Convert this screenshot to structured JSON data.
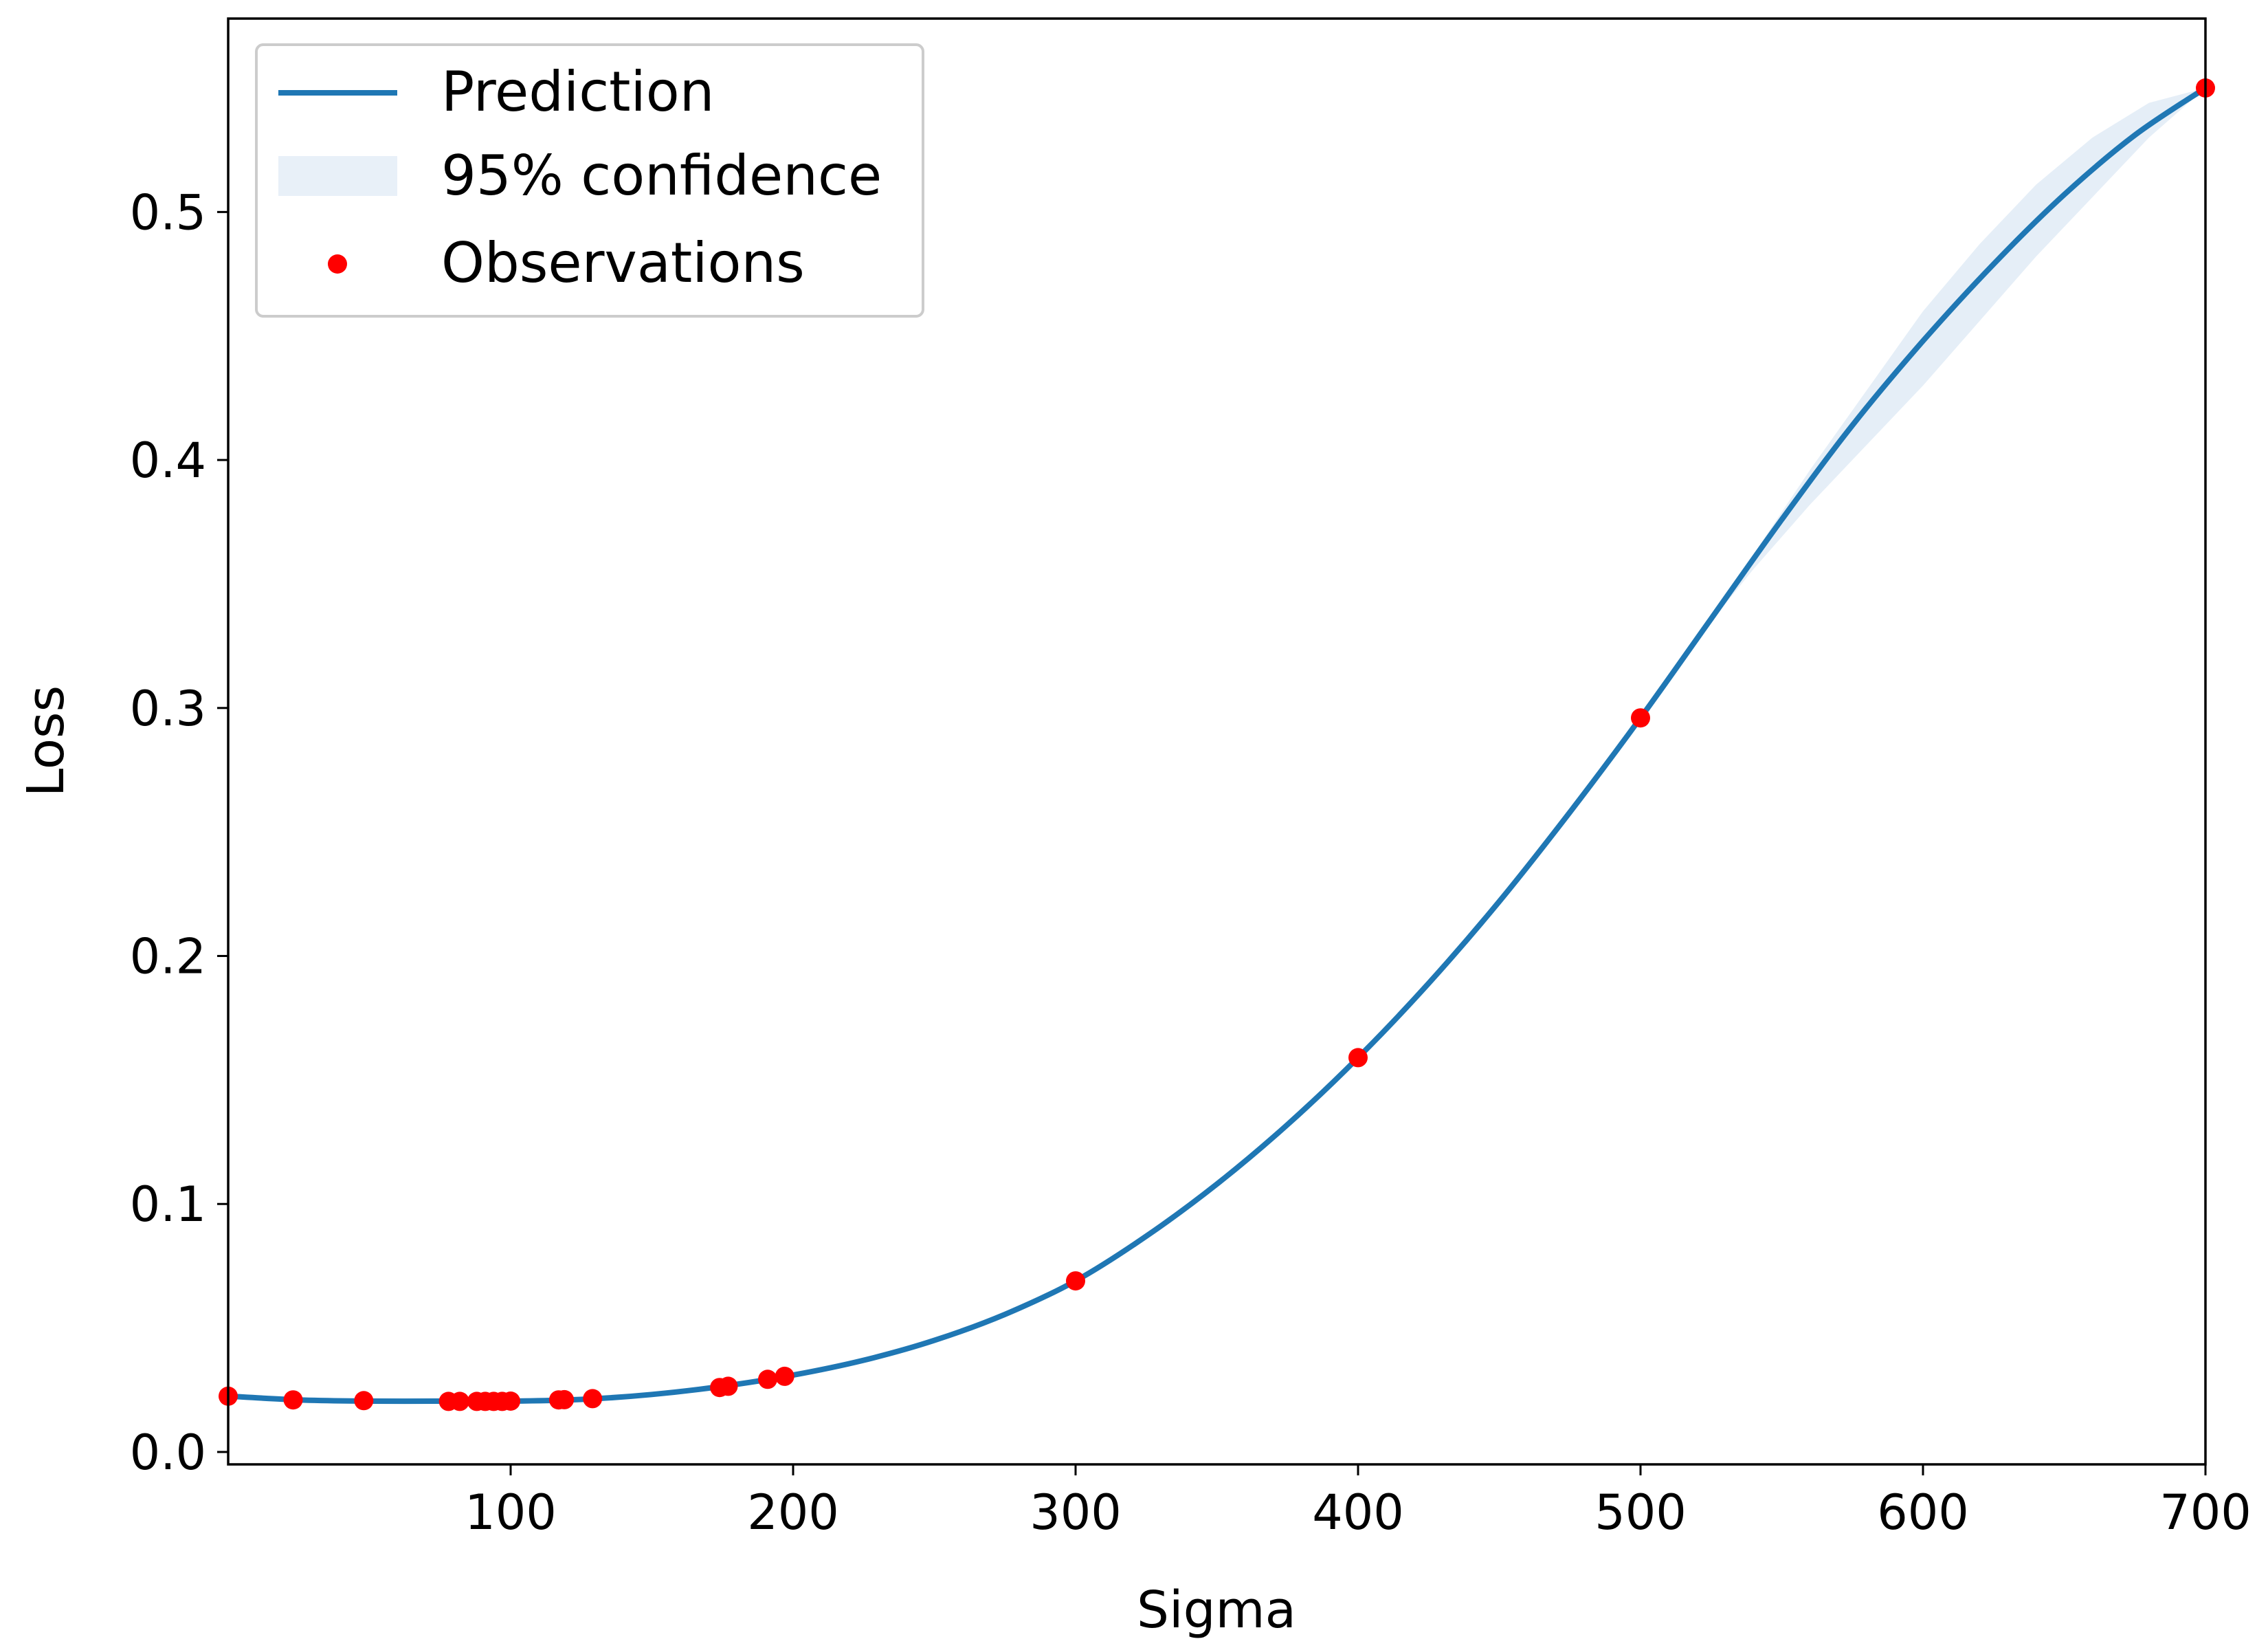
{
  "chart_data": {
    "type": "line",
    "xlabel": "Sigma",
    "ylabel": "Loss",
    "xlim": [
      0,
      700
    ],
    "ylim": [
      -0.005,
      0.578
    ],
    "x_ticks": [
      100,
      200,
      300,
      400,
      500,
      600,
      700
    ],
    "x_tick_labels": [
      "100",
      "200",
      "300",
      "400",
      "500",
      "600",
      "700"
    ],
    "y_ticks": [
      0.0,
      0.1,
      0.2,
      0.3,
      0.4,
      0.5
    ],
    "y_tick_labels": [
      "0.0",
      "0.1",
      "0.2",
      "0.3",
      "0.4",
      "0.5"
    ],
    "grid": false,
    "legend_position": "top-left",
    "colors": {
      "prediction": "#1f77b4",
      "confidence": "#dce8f4",
      "observations": "#ff0000",
      "axes": "#000000",
      "legend_border": "#cccccc"
    },
    "series": [
      {
        "name": "Prediction",
        "kind": "line",
        "x": [
          0,
          25,
          50,
          75,
          100,
          125,
          150,
          175,
          200,
          225,
          250,
          275,
          300,
          325,
          350,
          375,
          400,
          425,
          450,
          475,
          500,
          525,
          550,
          575,
          600,
          625,
          650,
          675,
          700
        ],
        "y": [
          0.0225,
          0.021,
          0.0205,
          0.0205,
          0.0205,
          0.0212,
          0.0232,
          0.0265,
          0.031,
          0.037,
          0.045,
          0.0555,
          0.069,
          0.087,
          0.108,
          0.132,
          0.159,
          0.189,
          0.222,
          0.258,
          0.296,
          0.336,
          0.376,
          0.414,
          0.448,
          0.479,
          0.507,
          0.531,
          0.55
        ]
      },
      {
        "name": "95% confidence",
        "kind": "band",
        "x": [
          0,
          100,
          200,
          300,
          400,
          500,
          520,
          540,
          560,
          580,
          600,
          620,
          640,
          660,
          680,
          700
        ],
        "lower": [
          0.0225,
          0.0205,
          0.031,
          0.069,
          0.159,
          0.296,
          0.328,
          0.356,
          0.382,
          0.406,
          0.43,
          0.456,
          0.482,
          0.506,
          0.53,
          0.55
        ],
        "upper": [
          0.0225,
          0.0205,
          0.031,
          0.069,
          0.159,
          0.296,
          0.329,
          0.362,
          0.396,
          0.428,
          0.46,
          0.487,
          0.511,
          0.53,
          0.544,
          0.55
        ]
      },
      {
        "name": "Observations",
        "kind": "scatter",
        "x": [
          0,
          23,
          48,
          78,
          82,
          88,
          91,
          94,
          97,
          100,
          117,
          119,
          129,
          174,
          177,
          191,
          197,
          300,
          400,
          500,
          700
        ],
        "y": [
          0.0225,
          0.021,
          0.0207,
          0.0204,
          0.0204,
          0.0204,
          0.0204,
          0.0204,
          0.0204,
          0.0205,
          0.021,
          0.0211,
          0.0215,
          0.026,
          0.0265,
          0.0293,
          0.0305,
          0.069,
          0.159,
          0.296,
          0.55
        ]
      }
    ]
  }
}
